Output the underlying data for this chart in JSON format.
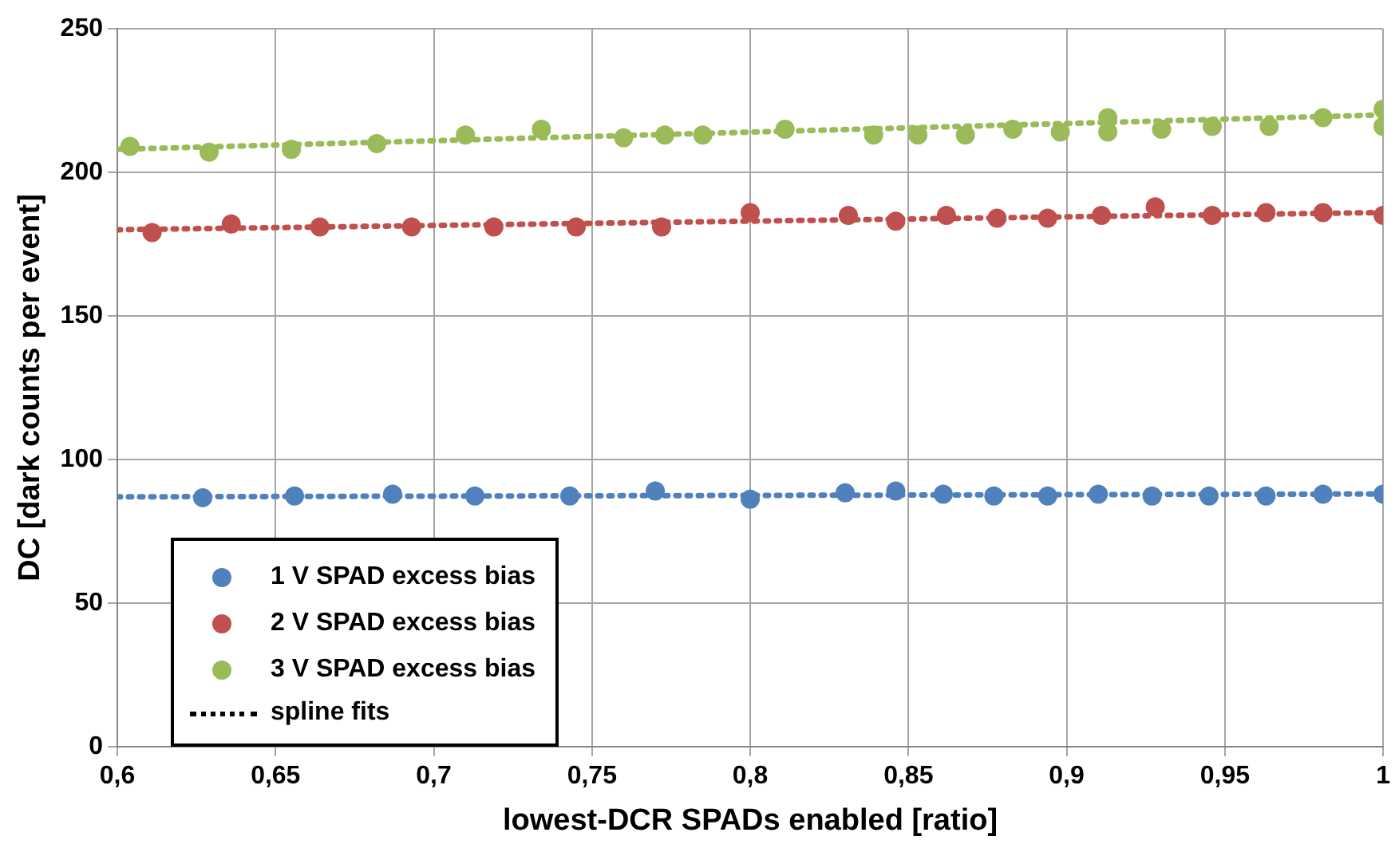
{
  "chart_data": {
    "type": "scatter",
    "xlabel": "lowest-DCR SPADs enabled [ratio]",
    "ylabel": "DC [dark counts per event]",
    "xlim": [
      0.6,
      1
    ],
    "xticks": [
      {
        "value": 0.6,
        "label": "0,6"
      },
      {
        "value": 0.65,
        "label": "0,65"
      },
      {
        "value": 0.7,
        "label": "0,7"
      },
      {
        "value": 0.75,
        "label": "0,75"
      },
      {
        "value": 0.8,
        "label": "0,8"
      },
      {
        "value": 0.85,
        "label": "0,85"
      },
      {
        "value": 0.9,
        "label": "0,9"
      },
      {
        "value": 0.95,
        "label": "0,95"
      },
      {
        "value": 1,
        "label": "1"
      }
    ],
    "ylim": [
      0,
      250
    ],
    "yticks": [
      0,
      50,
      100,
      150,
      200,
      250
    ],
    "grid": true,
    "legend": "bottom left",
    "marker": "circle",
    "annotations": [
      "spline fits"
    ],
    "series": [
      {
        "name": "1 V SPAD excess bias",
        "color": "#4f81bd",
        "x": [
          0.627,
          0.656,
          0.687,
          0.713,
          0.743,
          0.77,
          0.8,
          0.83,
          0.846,
          0.861,
          0.877,
          0.894,
          0.91,
          0.927,
          0.945,
          0.963,
          0.981,
          1.0
        ],
        "values": [
          86.7,
          87.3,
          87.9,
          87.3,
          87.3,
          89,
          86.2,
          88.4,
          89,
          87.9,
          87.3,
          87.3,
          87.9,
          87.3,
          87.3,
          87.3,
          87.9,
          87.9
        ]
      },
      {
        "name": "2 V SPAD excess bias",
        "color": "#c0504d",
        "x": [
          0.611,
          0.636,
          0.664,
          0.693,
          0.719,
          0.745,
          0.772,
          0.8,
          0.831,
          0.846,
          0.862,
          0.878,
          0.894,
          0.911,
          0.928,
          0.946,
          0.963,
          0.981,
          1.0
        ],
        "values": [
          179,
          182,
          181,
          181,
          181,
          181,
          181,
          186,
          185,
          183,
          185,
          184,
          184,
          185,
          188,
          185,
          186,
          186,
          185
        ]
      },
      {
        "name": "3 V SPAD excess bias",
        "color": "#9bbb59",
        "x": [
          0.604,
          0.629,
          0.655,
          0.682,
          0.71,
          0.734,
          0.76,
          0.773,
          0.785,
          0.811,
          0.839,
          0.853,
          0.868,
          0.883,
          0.898,
          0.913,
          0.913,
          0.93,
          0.946,
          0.964,
          0.981,
          1.0,
          1.0
        ],
        "values": [
          209,
          207,
          208,
          210,
          213,
          215,
          212,
          213,
          213,
          215,
          213,
          213,
          213,
          215,
          214,
          219,
          214,
          215,
          216,
          216,
          219,
          222,
          216
        ]
      },
      {
        "type": "line",
        "line_style": "dotted",
        "marker": "none",
        "color": "#4f81bd",
        "x": [
          0.6,
          0.8,
          1.0
        ],
        "values": [
          87,
          87.5,
          88
        ]
      },
      {
        "type": "line",
        "line_style": "dotted",
        "marker": "none",
        "color": "#c0504d",
        "x": [
          0.6,
          0.8,
          1.0
        ],
        "values": [
          180,
          183,
          186
        ]
      },
      {
        "type": "line",
        "line_style": "dotted",
        "marker": "none",
        "color": "#9bbb59",
        "x": [
          0.6,
          0.8,
          1.0
        ],
        "values": [
          208,
          214,
          220
        ]
      }
    ]
  }
}
